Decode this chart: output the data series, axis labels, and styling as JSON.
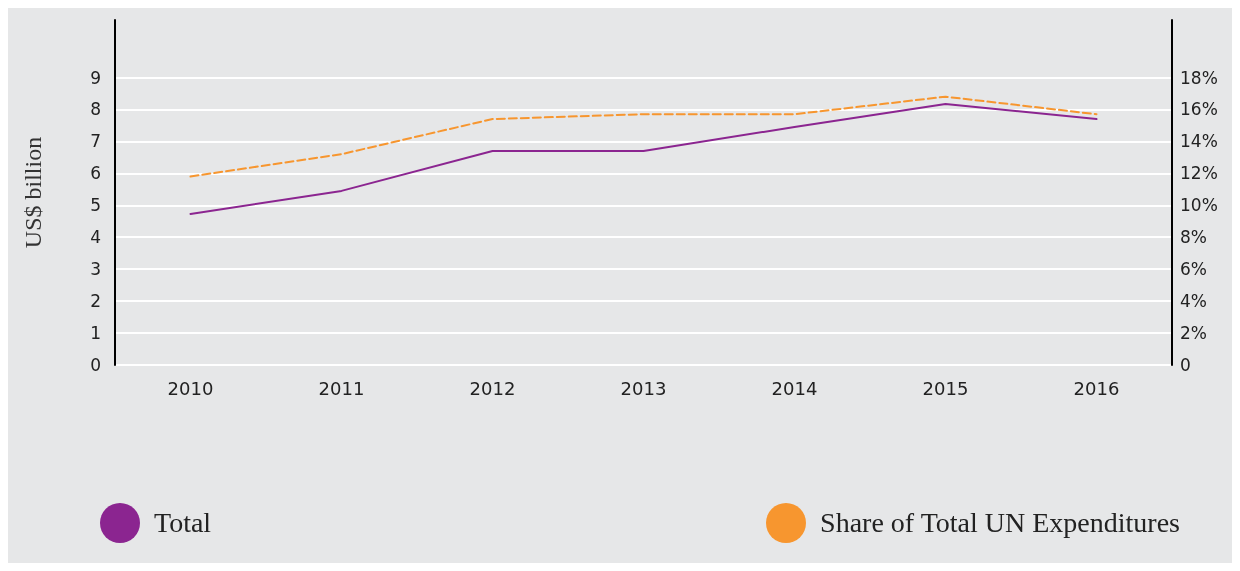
{
  "chart_data": {
    "type": "line",
    "ylabel": "US$ billion",
    "categories": [
      "2010",
      "2011",
      "2012",
      "2013",
      "2014",
      "2015",
      "2016"
    ],
    "series": [
      {
        "name": "Total",
        "color": "#8b2590",
        "values": [
          4.73,
          5.45,
          6.7,
          6.7,
          7.45,
          8.17,
          7.7
        ],
        "line_style": "solid"
      },
      {
        "name": "Share of Total UN Expenditures",
        "color": "#f7962f",
        "values": [
          11.8,
          13.2,
          15.4,
          15.7,
          15.7,
          16.8,
          15.7
        ],
        "axis": "y2",
        "line_style": "dashed"
      }
    ],
    "ylim": [
      0,
      10.8
    ],
    "yticks": [
      0,
      1,
      2,
      3,
      4,
      5,
      6,
      7,
      8,
      9
    ],
    "y2lim": [
      0,
      21.6
    ],
    "y2ticks": [
      {
        "value": 0,
        "label": "0"
      },
      {
        "value": 2,
        "label": "2%"
      },
      {
        "value": 4,
        "label": "4%"
      },
      {
        "value": 6,
        "label": "6%"
      },
      {
        "value": 8,
        "label": "8%"
      },
      {
        "value": 10,
        "label": "10%"
      },
      {
        "value": 12,
        "label": "12%"
      },
      {
        "value": 14,
        "label": "14%"
      },
      {
        "value": 16,
        "label": "16%"
      },
      {
        "value": 18,
        "label": "18%"
      }
    ],
    "grid": "y",
    "legend": "bottom",
    "marker": "none"
  }
}
